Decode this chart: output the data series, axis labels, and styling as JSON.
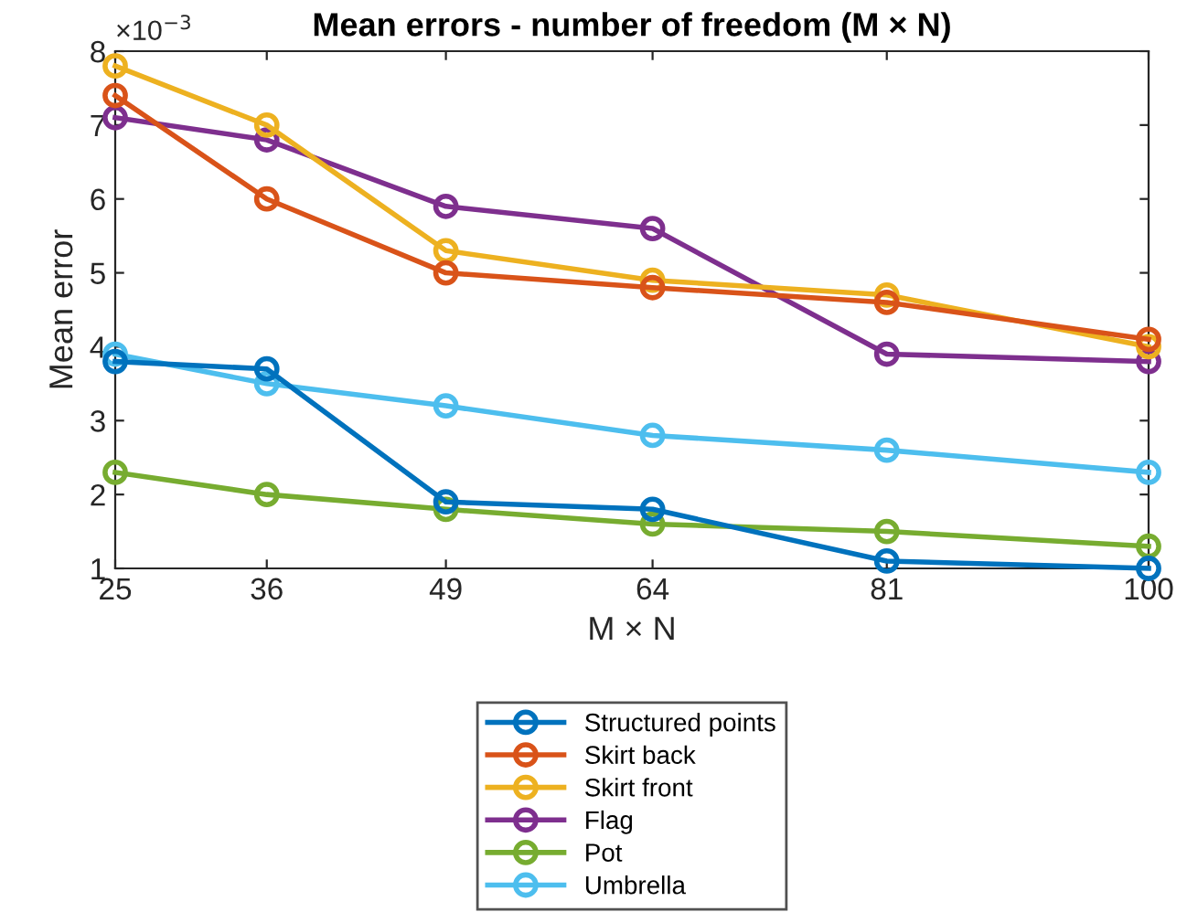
{
  "chart_data": {
    "type": "line",
    "title": "Mean errors - number of freedom (M × N)",
    "xlabel": "M × N",
    "ylabel": "Mean error",
    "annotations": [
      "×10$^{−3}$"
    ],
    "x": [
      25,
      36,
      49,
      64,
      81,
      100
    ],
    "xlim": [
      25,
      100
    ],
    "xticks": [
      25,
      36,
      49,
      64,
      81,
      100
    ],
    "ylim": [
      1,
      8
    ],
    "yticks": [
      1,
      2,
      3,
      4,
      5,
      6,
      7,
      8
    ],
    "grid": false,
    "legend": "bottom",
    "marker": "circle",
    "line_style": "solid",
    "series": [
      {
        "name": "Structured points",
        "color": "#0072bd",
        "values": [
          3.8,
          3.7,
          1.9,
          1.8,
          1.1,
          1.0
        ]
      },
      {
        "name": "Skirt back",
        "color": "#d95319",
        "values": [
          7.4,
          6.0,
          5.0,
          4.8,
          4.6,
          4.1
        ]
      },
      {
        "name": "Skirt front",
        "color": "#edb120",
        "values": [
          7.8,
          7.0,
          5.3,
          4.9,
          4.7,
          4.0
        ]
      },
      {
        "name": "Flag",
        "color": "#7e2f8e",
        "values": [
          7.1,
          6.8,
          5.9,
          5.6,
          3.9,
          3.8
        ]
      },
      {
        "name": "Pot",
        "color": "#77ac30",
        "values": [
          2.3,
          2.0,
          1.8,
          1.6,
          1.5,
          1.3
        ]
      },
      {
        "name": "Umbrella",
        "color": "#4dbeee",
        "values": [
          3.9,
          3.5,
          3.2,
          2.8,
          2.6,
          2.3
        ]
      }
    ]
  }
}
